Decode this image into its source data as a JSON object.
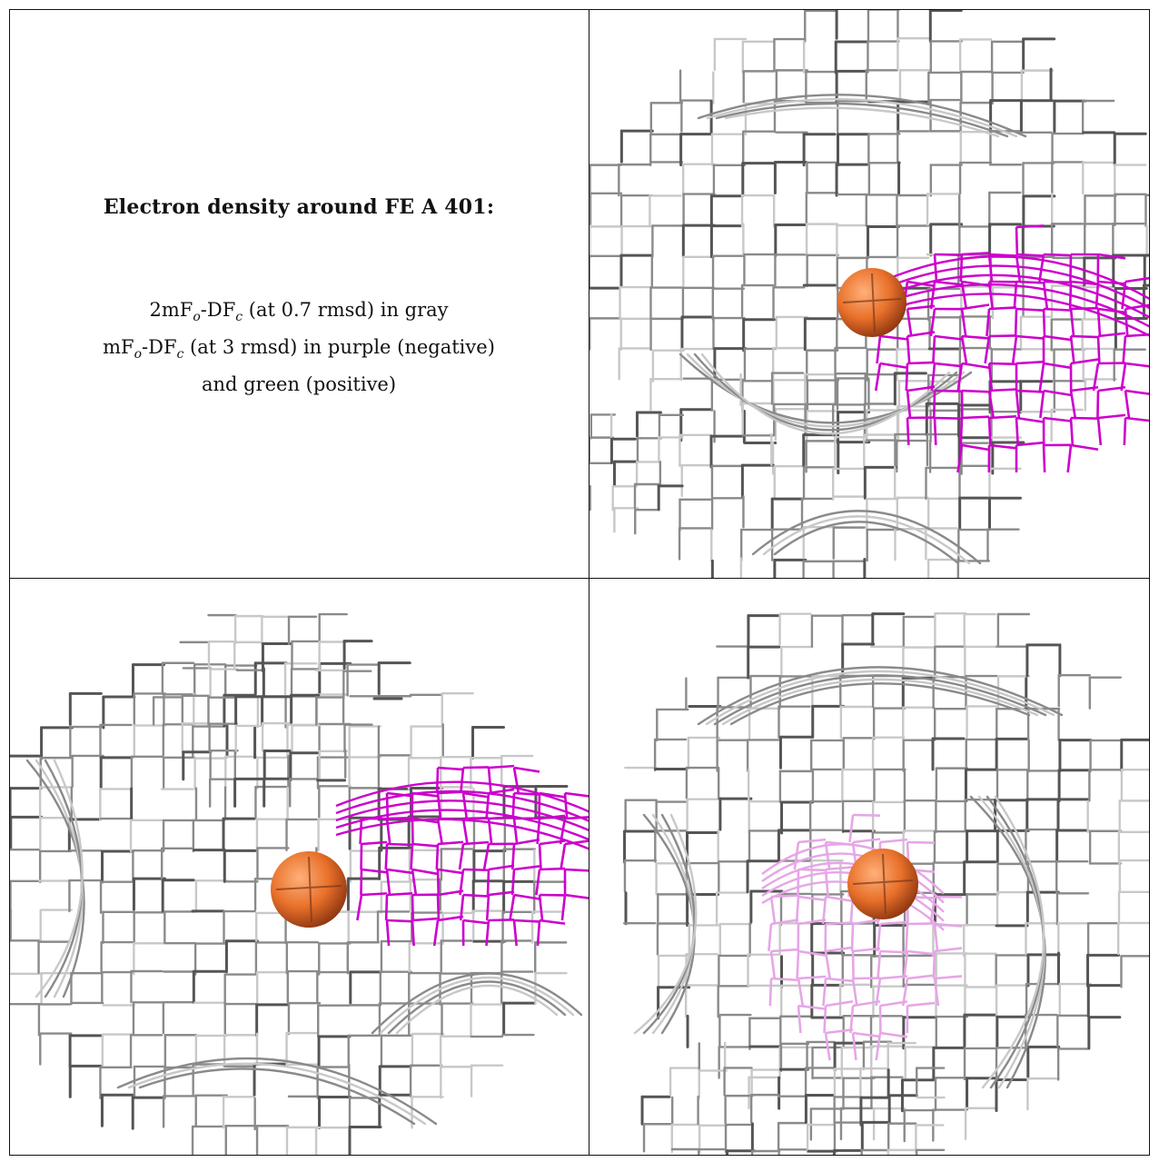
{
  "info": {
    "title": "Electron density around FE A 401:",
    "line1": {
      "pre": "2mF",
      "s1": "o",
      "mid": "-DF",
      "s2": "c",
      "post": " (at 0.7 rmsd) in gray"
    },
    "line2": {
      "pre": "mF",
      "s1": "o",
      "mid": "-DF",
      "s2": "c",
      "post": " (at 3 rmsd) in purple (negative)"
    },
    "line3": "and green (positive)"
  },
  "colors": {
    "mesh_gray": "#8a8a8a",
    "mesh_dark": "#555555",
    "mesh_light": "#c8c8c8",
    "negative_density": "#cc00cc",
    "negative_density_faint": "#e6a6e6",
    "iron_atom": "#e8702a"
  },
  "panels": [
    {
      "name": "view-1",
      "atom": "iron-sphere",
      "negative_density": "strong"
    },
    {
      "name": "view-2",
      "atom": "iron-sphere",
      "negative_density": "strong"
    },
    {
      "name": "view-3",
      "atom": "iron-sphere",
      "negative_density": "faint"
    }
  ]
}
